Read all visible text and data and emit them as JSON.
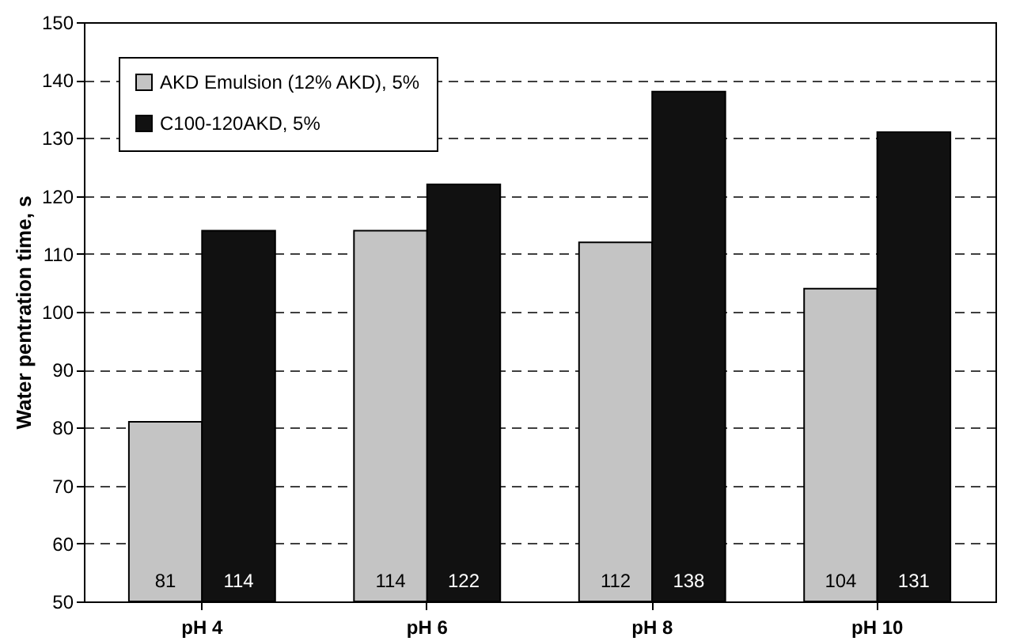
{
  "chart_data": {
    "type": "bar",
    "ylabel": "Water pentration time, s",
    "categories": [
      "pH 4",
      "pH 6",
      "pH 8",
      "pH 10"
    ],
    "series": [
      {
        "name": "AKD Emulsion (12% AKD), 5%",
        "color": "#c4c4c4",
        "values": [
          81,
          114,
          112,
          104
        ]
      },
      {
        "name": "C100-120AKD, 5%",
        "color": "#111111",
        "values": [
          114,
          122,
          138,
          131
        ]
      }
    ],
    "ylim": [
      50,
      150
    ],
    "yticks": [
      50,
      60,
      70,
      80,
      90,
      100,
      110,
      120,
      130,
      140,
      150
    ],
    "grid": "y",
    "legend": "top left",
    "data_labels": true
  }
}
